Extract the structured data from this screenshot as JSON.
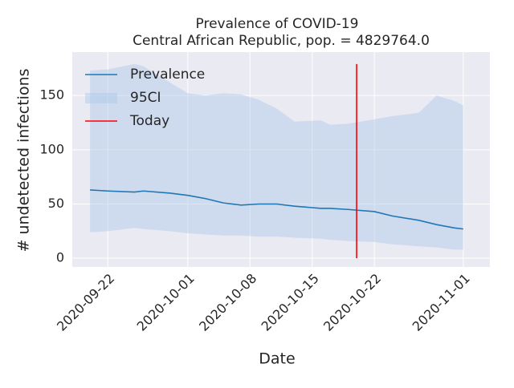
{
  "chart_data": {
    "type": "line",
    "title": "Prevalence of COVID-19",
    "subtitle": "Central African Republic, pop. = 4829764.0",
    "xlabel": "Date",
    "ylabel": "# undetected infections",
    "x": [
      "2020-09-20",
      "2020-09-22",
      "2020-09-25",
      "2020-09-26",
      "2020-09-29",
      "2020-10-01",
      "2020-10-03",
      "2020-10-05",
      "2020-10-07",
      "2020-10-09",
      "2020-10-11",
      "2020-10-13",
      "2020-10-16",
      "2020-10-17",
      "2020-10-19",
      "2020-10-22",
      "2020-10-24",
      "2020-10-27",
      "2020-10-29",
      "2020-10-31",
      "2020-11-01"
    ],
    "series": [
      {
        "name": "Prevalence",
        "color": "#1f77b4",
        "values": [
          63,
          62,
          61,
          62,
          60,
          58,
          55,
          51,
          49,
          50,
          50,
          48,
          46,
          46,
          45,
          43,
          39,
          35,
          31,
          28,
          27
        ]
      },
      {
        "name": "95CI",
        "color": "#aec7e8",
        "lower": [
          24,
          25,
          28,
          27,
          25,
          23,
          22,
          21,
          21,
          20,
          20,
          19,
          18,
          17,
          16,
          15,
          13,
          11,
          10,
          8,
          8
        ],
        "upper": [
          173,
          174,
          179,
          177,
          162,
          152,
          150,
          152,
          151,
          146,
          138,
          126,
          127,
          123,
          124,
          128,
          131,
          134,
          150,
          145,
          141
        ]
      },
      {
        "name": "Today",
        "color": "#ff0000",
        "x": [
          "2020-10-20",
          "2020-10-20"
        ],
        "values": [
          0,
          179
        ]
      }
    ],
    "xlim": [
      "2020-09-18",
      "2020-11-04"
    ],
    "xticks": [
      "2020-09-22",
      "2020-10-01",
      "2020-10-08",
      "2020-10-15",
      "2020-10-22",
      "2020-11-01"
    ],
    "ylim": [
      -8,
      190
    ],
    "yticks": [
      0,
      50,
      100,
      150
    ],
    "grid": true,
    "legend": "upper left"
  }
}
